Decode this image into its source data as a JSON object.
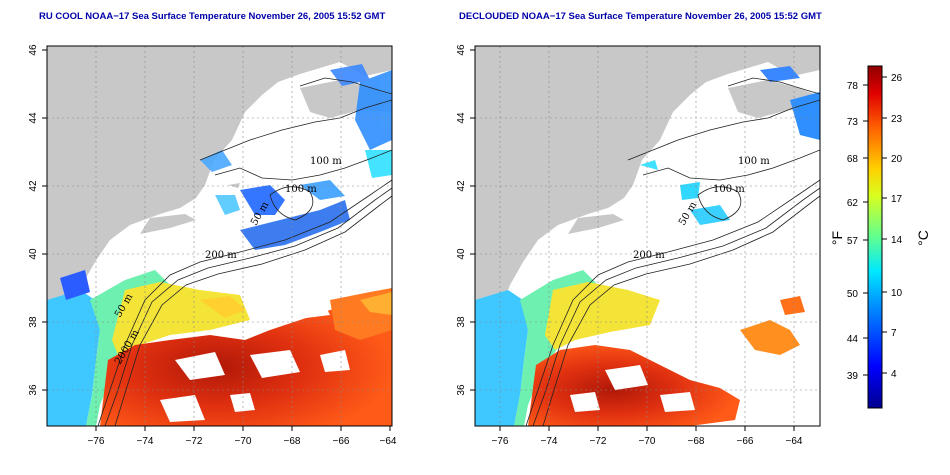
{
  "panels": [
    {
      "title": "RU COOL NOAA−17 Sea Surface Temperature November 26, 2005 15:52 GMT",
      "contour_labels": [
        "100 m",
        "100 m",
        "50 m",
        "200 m",
        "50 m",
        "2000 m"
      ]
    },
    {
      "title": "DECLOUDED NOAA−17 Sea Surface Temperature November 26, 2005 15:52 GMT",
      "contour_labels": [
        "100 m",
        "100 m",
        "50 m",
        "200 m"
      ]
    }
  ],
  "axes": {
    "x_ticks": [
      "−76",
      "−74",
      "−72",
      "−70",
      "−68",
      "−66",
      "−64"
    ],
    "y_ticks": [
      "46",
      "44",
      "42",
      "40",
      "38",
      "36"
    ]
  },
  "colorbar": {
    "fahrenheit_unit": "°F",
    "celsius_unit": "°C",
    "fahrenheit_ticks": [
      "78",
      "73",
      "68",
      "62",
      "57",
      "50",
      "44",
      "39"
    ],
    "celsius_ticks": [
      "26",
      "23",
      "20",
      "17",
      "14",
      "10",
      "7",
      "4"
    ],
    "colors": [
      "#00008f",
      "#0000ff",
      "#0080ff",
      "#00ffff",
      "#80ff80",
      "#ffff00",
      "#ff8000",
      "#ff0000",
      "#800000"
    ]
  },
  "colors": {
    "land": "#c8c8c8",
    "title": "#0000aa",
    "warm": "#dd2a10",
    "cool": "#2277ff"
  }
}
